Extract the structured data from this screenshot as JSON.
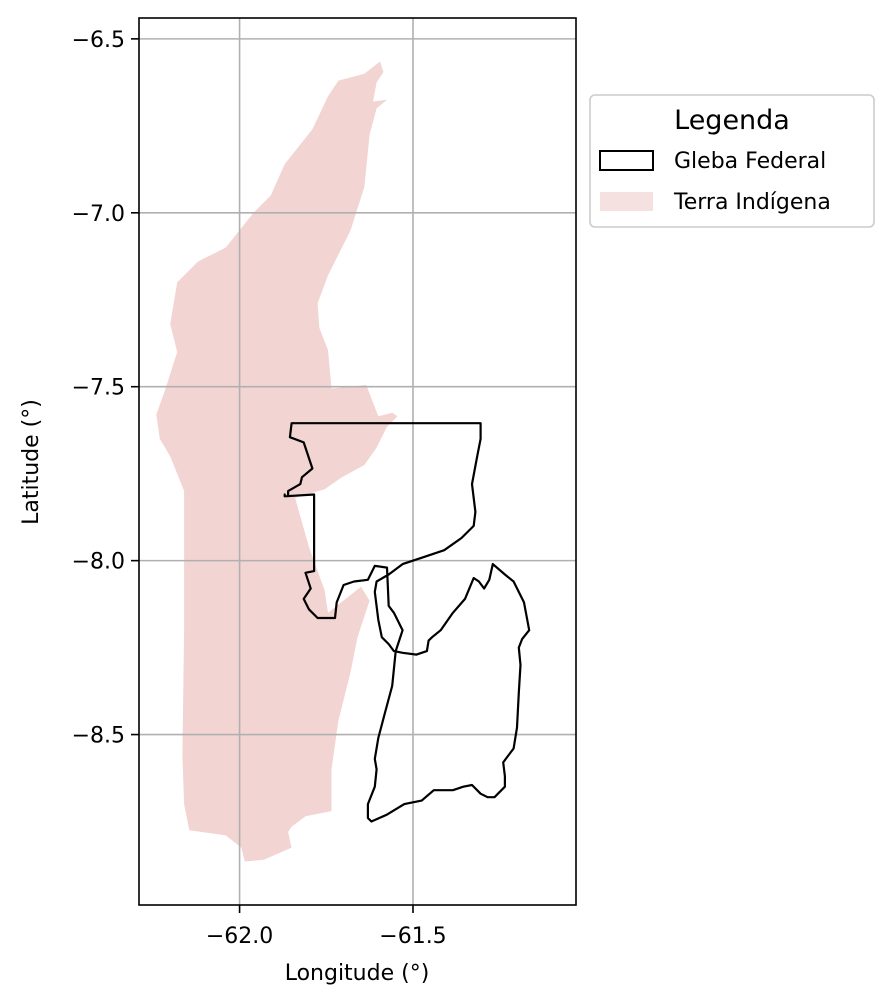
{
  "chart_data": {
    "type": "map",
    "xlabel": "Longitude (°)",
    "ylabel": "Latitude (°)",
    "xlim": [
      -62.29,
      -61.03
    ],
    "ylim": [
      -8.99,
      -6.44
    ],
    "xticks": [
      -62.0,
      -61.5
    ],
    "xtick_labels": [
      "−62.0",
      "−61.5"
    ],
    "yticks": [
      -6.5,
      -7.0,
      -7.5,
      -8.0,
      -8.5
    ],
    "ytick_labels": [
      "−6.5",
      "−7.0",
      "−7.5",
      "−8.0",
      "−8.5"
    ],
    "grid": true,
    "legend": {
      "title": "Legenda",
      "placement": "outside-upper-right",
      "entries": [
        {
          "label": "Gleba Federal",
          "style": "outline",
          "color": "#000000"
        },
        {
          "label": "Terra Indígena",
          "style": "fill",
          "color": "#f2d4d3"
        }
      ]
    },
    "layers": [
      {
        "name": "Terra Indígena",
        "style": "fill",
        "color": "#f2d4d3",
        "coordinates": [
          [
            -61.595,
            -6.565
          ],
          [
            -61.585,
            -6.595
          ],
          [
            -61.605,
            -6.625
          ],
          [
            -61.615,
            -6.68
          ],
          [
            -61.575,
            -6.675
          ],
          [
            -61.605,
            -6.7
          ],
          [
            -61.625,
            -6.775
          ],
          [
            -61.64,
            -6.925
          ],
          [
            -61.68,
            -7.05
          ],
          [
            -61.745,
            -7.18
          ],
          [
            -61.775,
            -7.26
          ],
          [
            -61.77,
            -7.33
          ],
          [
            -61.745,
            -7.395
          ],
          [
            -61.735,
            -7.505
          ],
          [
            -61.635,
            -7.495
          ],
          [
            -61.6,
            -7.585
          ],
          [
            -61.56,
            -7.575
          ],
          [
            -61.545,
            -7.585
          ],
          [
            -61.575,
            -7.615
          ],
          [
            -61.605,
            -7.675
          ],
          [
            -61.64,
            -7.725
          ],
          [
            -61.705,
            -7.76
          ],
          [
            -61.755,
            -7.795
          ],
          [
            -61.84,
            -7.82
          ],
          [
            -61.8,
            -7.96
          ],
          [
            -61.775,
            -8.03
          ],
          [
            -61.755,
            -8.085
          ],
          [
            -61.745,
            -8.15
          ],
          [
            -61.72,
            -8.13
          ],
          [
            -61.65,
            -8.075
          ],
          [
            -61.625,
            -8.115
          ],
          [
            -61.66,
            -8.22
          ],
          [
            -61.68,
            -8.32
          ],
          [
            -61.715,
            -8.46
          ],
          [
            -61.735,
            -8.6
          ],
          [
            -61.735,
            -8.72
          ],
          [
            -61.81,
            -8.735
          ],
          [
            -61.85,
            -8.765
          ],
          [
            -61.86,
            -8.78
          ],
          [
            -61.85,
            -8.825
          ],
          [
            -61.93,
            -8.86
          ],
          [
            -61.985,
            -8.865
          ],
          [
            -61.995,
            -8.825
          ],
          [
            -62.04,
            -8.79
          ],
          [
            -62.145,
            -8.775
          ],
          [
            -62.16,
            -8.7
          ],
          [
            -62.165,
            -8.56
          ],
          [
            -62.16,
            -8.2
          ],
          [
            -62.16,
            -7.8
          ],
          [
            -62.2,
            -7.7
          ],
          [
            -62.23,
            -7.65
          ],
          [
            -62.24,
            -7.58
          ],
          [
            -62.215,
            -7.51
          ],
          [
            -62.18,
            -7.4
          ],
          [
            -62.2,
            -7.32
          ],
          [
            -62.18,
            -7.2
          ],
          [
            -62.12,
            -7.14
          ],
          [
            -62.04,
            -7.1
          ],
          [
            -61.96,
            -7.0
          ],
          [
            -61.91,
            -6.95
          ],
          [
            -61.87,
            -6.86
          ],
          [
            -61.79,
            -6.76
          ],
          [
            -61.745,
            -6.665
          ],
          [
            -61.715,
            -6.62
          ],
          [
            -61.64,
            -6.6
          ]
        ]
      },
      {
        "name": "Gleba Federal",
        "style": "outline",
        "color": "#000000",
        "coordinates": [
          [
            -61.305,
            -7.605
          ],
          [
            -61.85,
            -7.605
          ],
          [
            -61.855,
            -7.645
          ],
          [
            -61.815,
            -7.66
          ],
          [
            -61.79,
            -7.735
          ],
          [
            -61.82,
            -7.76
          ],
          [
            -61.825,
            -7.78
          ],
          [
            -61.86,
            -7.8
          ],
          [
            -61.86,
            -7.815
          ],
          [
            -61.87,
            -7.815
          ],
          [
            -61.87,
            -7.81
          ],
          [
            -61.87,
            -7.815
          ],
          [
            -61.785,
            -7.81
          ],
          [
            -61.785,
            -8.03
          ],
          [
            -61.81,
            -8.035
          ],
          [
            -61.795,
            -8.08
          ],
          [
            -61.815,
            -8.11
          ],
          [
            -61.8,
            -8.14
          ],
          [
            -61.775,
            -8.165
          ],
          [
            -61.725,
            -8.165
          ],
          [
            -61.72,
            -8.12
          ],
          [
            -61.7,
            -8.07
          ],
          [
            -61.67,
            -8.06
          ],
          [
            -61.63,
            -8.055
          ],
          [
            -61.61,
            -8.015
          ],
          [
            -61.575,
            -8.02
          ],
          [
            -61.57,
            -8.13
          ],
          [
            -61.555,
            -8.15
          ],
          [
            -61.53,
            -8.2
          ],
          [
            -61.55,
            -8.26
          ],
          [
            -61.56,
            -8.36
          ],
          [
            -61.58,
            -8.435
          ],
          [
            -61.6,
            -8.51
          ],
          [
            -61.61,
            -8.57
          ],
          [
            -61.605,
            -8.6
          ],
          [
            -61.61,
            -8.65
          ],
          [
            -61.63,
            -8.7
          ],
          [
            -61.63,
            -8.74
          ],
          [
            -61.62,
            -8.75
          ],
          [
            -61.575,
            -8.73
          ],
          [
            -61.525,
            -8.7
          ],
          [
            -61.475,
            -8.69
          ],
          [
            -61.44,
            -8.66
          ],
          [
            -61.385,
            -8.66
          ],
          [
            -61.355,
            -8.65
          ],
          [
            -61.33,
            -8.645
          ],
          [
            -61.305,
            -8.67
          ],
          [
            -61.285,
            -8.68
          ],
          [
            -61.265,
            -8.68
          ],
          [
            -61.235,
            -8.65
          ],
          [
            -61.235,
            -8.62
          ],
          [
            -61.24,
            -8.58
          ],
          [
            -61.225,
            -8.56
          ],
          [
            -61.21,
            -8.54
          ],
          [
            -61.2,
            -8.48
          ],
          [
            -61.195,
            -8.38
          ],
          [
            -61.19,
            -8.3
          ],
          [
            -61.195,
            -8.25
          ],
          [
            -61.185,
            -8.225
          ],
          [
            -61.165,
            -8.2
          ],
          [
            -61.18,
            -8.12
          ],
          [
            -61.21,
            -8.06
          ],
          [
            -61.235,
            -8.04
          ],
          [
            -61.27,
            -8.01
          ],
          [
            -61.28,
            -8.055
          ],
          [
            -61.295,
            -8.08
          ],
          [
            -61.31,
            -8.06
          ],
          [
            -61.325,
            -8.05
          ],
          [
            -61.35,
            -8.11
          ],
          [
            -61.385,
            -8.15
          ],
          [
            -61.42,
            -8.2
          ],
          [
            -61.445,
            -8.22
          ],
          [
            -61.455,
            -8.23
          ],
          [
            -61.46,
            -8.26
          ],
          [
            -61.49,
            -8.27
          ],
          [
            -61.53,
            -8.265
          ],
          [
            -61.555,
            -8.26
          ],
          [
            -61.57,
            -8.24
          ],
          [
            -61.59,
            -8.22
          ],
          [
            -61.6,
            -8.17
          ],
          [
            -61.61,
            -8.09
          ],
          [
            -61.605,
            -8.06
          ],
          [
            -61.57,
            -8.04
          ],
          [
            -61.53,
            -8.01
          ],
          [
            -61.47,
            -7.99
          ],
          [
            -61.41,
            -7.97
          ],
          [
            -61.36,
            -7.935
          ],
          [
            -61.325,
            -7.9
          ],
          [
            -61.32,
            -7.86
          ],
          [
            -61.33,
            -7.78
          ],
          [
            -61.315,
            -7.7
          ],
          [
            -61.305,
            -7.65
          ]
        ]
      }
    ]
  }
}
